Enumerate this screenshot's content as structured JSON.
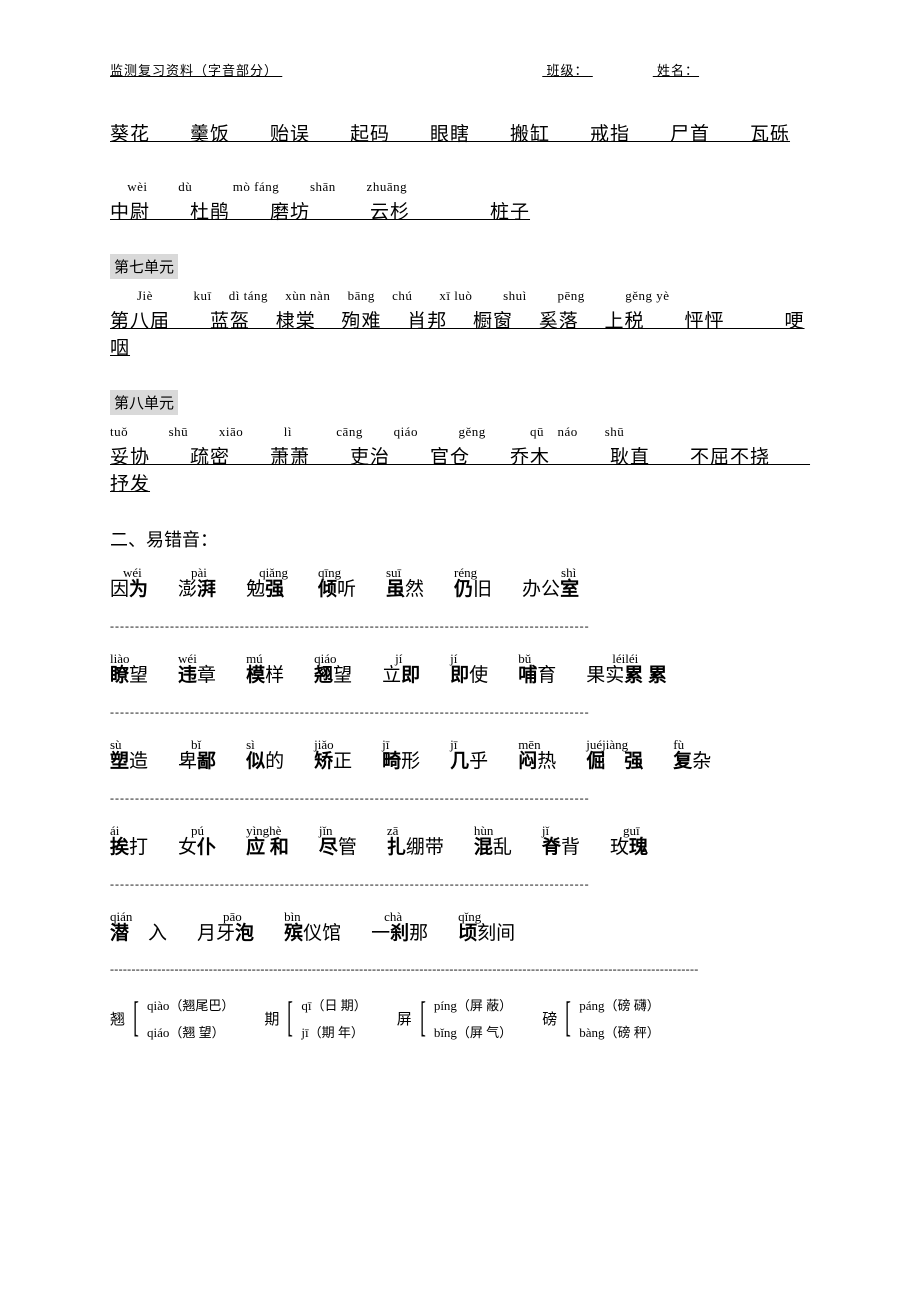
{
  "header": {
    "left": "监测复习资料（字音部分）",
    "class_label": "班级：",
    "name_label": "姓名："
  },
  "line1": {
    "hanzi": "葵花　　羹饭　　贻误　　起码　　眼瞎　　搬缸　　戒指　　尸首　　瓦砾"
  },
  "line2": {
    "pinyin": "　 wèi　　 dù　　　mò fáng　　 shān　　 zhuāng",
    "hanzi": "中尉　　杜鹃　　磨坊　　　云杉　　　　桩子"
  },
  "unit7": {
    "label": "第七单元",
    "pinyin": "　　Jiè　　　kuī　 dì táng　 xùn nàn　 bāng　 chú　　xī luò　　 shuì　　 pēng　　　gěng yè",
    "hanzi": "第八届　　蓝盔　 棣棠　 殉难　 肖邦　 橱窗　 奚落　 上税　　怦怦　　　哽咽"
  },
  "unit8": {
    "label": "第八单元",
    "pinyin": "tuǒ　　　shū　　 xiāo　　　lì　　　 cāng　　 qiáo　　　gěng　　　 qū　náo　　shū",
    "hanzi": "妥协　　疏密　　萧萧　　吏治　　官仓　　乔木　　　耿直　　不屈不挠　　抒发"
  },
  "err_title": "二、易错音：",
  "err1": [
    {
      "p": "　wéi",
      "h": [
        "因",
        "为"
      ]
    },
    {
      "p": "　pài",
      "h": [
        "澎",
        "湃"
      ]
    },
    {
      "p": "　qiǎng",
      "h": [
        "勉",
        "强"
      ]
    },
    {
      "p": "qīng",
      "h": [
        "倾",
        "听"
      ],
      "boldIdx": 0
    },
    {
      "p": "suī",
      "h": [
        "虽",
        "然"
      ],
      "boldIdx": 0
    },
    {
      "p": "réng",
      "h": [
        "仍",
        "旧"
      ],
      "boldIdx": 0
    },
    {
      "p": "　　　shì",
      "h": [
        "办公",
        "室"
      ]
    }
  ],
  "err2": [
    {
      "p": "liào",
      "h": [
        "瞭",
        "望"
      ],
      "boldIdx": 0
    },
    {
      "p": "wéi",
      "h": [
        "违",
        "章"
      ],
      "boldIdx": 0
    },
    {
      "p": "mú",
      "h": [
        "模",
        "样"
      ],
      "boldIdx": 0
    },
    {
      "p": "qiáo",
      "h": [
        "翘",
        "望"
      ],
      "boldIdx": 0
    },
    {
      "p": "　jí",
      "h": [
        "立",
        "即"
      ]
    },
    {
      "p": "jí",
      "h": [
        "即",
        "使"
      ],
      "boldIdx": 0
    },
    {
      "p": "bǔ",
      "h": [
        "哺",
        "育"
      ],
      "boldIdx": 0
    },
    {
      "p": "　　léiléi",
      "h": [
        "果实",
        "累 累"
      ]
    }
  ],
  "err3": [
    {
      "p": "sù",
      "h": [
        "塑",
        "造"
      ],
      "boldIdx": 0
    },
    {
      "p": "　bǐ",
      "h": [
        "卑",
        "鄙"
      ]
    },
    {
      "p": "sì",
      "h": [
        "似",
        "的"
      ],
      "boldIdx": 0
    },
    {
      "p": "jiǎo",
      "h": [
        "矫",
        "正"
      ],
      "boldIdx": 0
    },
    {
      "p": "jī",
      "h": [
        "畸",
        "形"
      ],
      "boldIdx": 0
    },
    {
      "p": "jī",
      "h": [
        "几",
        "乎"
      ],
      "boldIdx": 0
    },
    {
      "p": "mēn",
      "h": [
        "闷",
        "热"
      ],
      "boldIdx": 0
    },
    {
      "p": "juéjiàng",
      "h": [
        "倔　强"
      ],
      "boldAll": true
    },
    {
      "p": "fù",
      "h": [
        "复",
        "杂"
      ],
      "boldIdx": 0
    }
  ],
  "err4": [
    {
      "p": "ái",
      "h": [
        "挨",
        "打"
      ],
      "boldIdx": 0
    },
    {
      "p": "　pú",
      "h": [
        "女",
        "仆"
      ]
    },
    {
      "p": "yìnghè",
      "h": [
        "应 和"
      ],
      "boldAll": true
    },
    {
      "p": "jǐn",
      "h": [
        "尽",
        "管"
      ],
      "boldIdx": 0
    },
    {
      "p": "zā",
      "h": [
        "扎",
        "绷带"
      ],
      "boldIdx": 0
    },
    {
      "p": "hùn",
      "h": [
        "混",
        "乱"
      ],
      "boldIdx": 0
    },
    {
      "p": "jǐ",
      "h": [
        "脊",
        "背"
      ],
      "boldIdx": 0
    },
    {
      "p": "　guī",
      "h": [
        "玫",
        "瑰"
      ]
    }
  ],
  "err5": [
    {
      "p": "qián",
      "h": [
        "潜",
        "　入"
      ],
      "boldIdx": 0
    },
    {
      "p": "　　pāo",
      "h": [
        "月牙",
        "泡"
      ]
    },
    {
      "p": "bìn",
      "h": [
        "殡",
        "仪馆"
      ],
      "boldIdx": 0
    },
    {
      "p": "　chà",
      "h": [
        "一",
        "刹",
        "那"
      ],
      "boldIdx": 1
    },
    {
      "p": "qǐng",
      "h": [
        "顷",
        "刻间"
      ],
      "boldIdx": 0
    }
  ],
  "poly": [
    {
      "char": "翘",
      "a": "qiào（翘尾巴）",
      "b": "qiáo（翘  望）"
    },
    {
      "char": "期",
      "a": "qī（日  期）",
      "b": "jī（期  年）"
    },
    {
      "char": "屏",
      "a": "píng（屏  蔽）",
      "b": "bǐng（屏  气）"
    },
    {
      "char": "磅",
      "a": "páng（磅  礴）",
      "b": "bàng（磅  秤）"
    }
  ],
  "colors": {
    "text": "#000000",
    "bg": "#ffffff",
    "section_bg": "#d9d9d9"
  }
}
